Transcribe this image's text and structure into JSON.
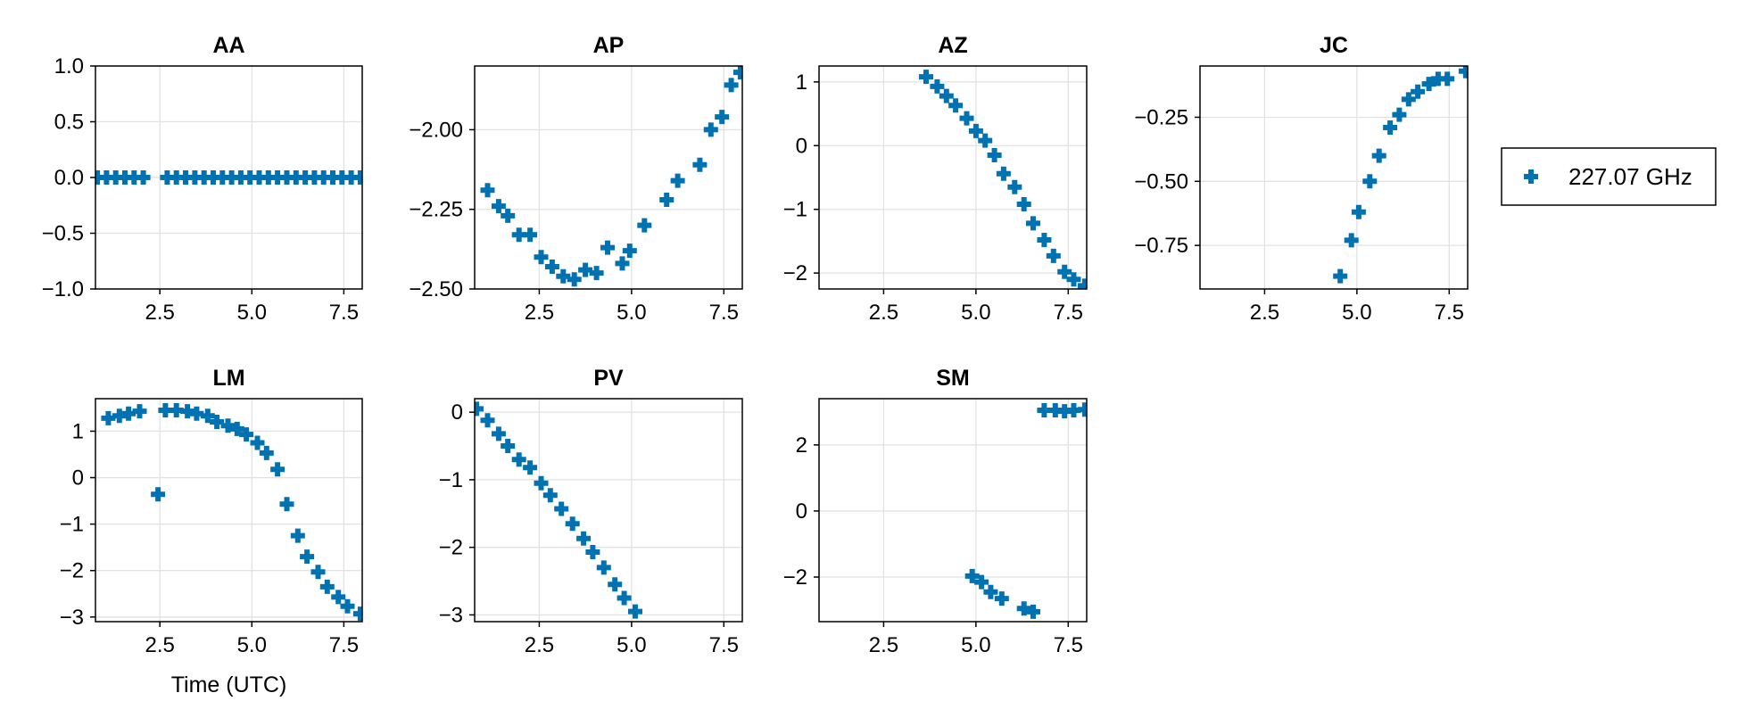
{
  "figure": {
    "legend": {
      "label": "227.07 GHz",
      "marker": "plus-marker",
      "color": "#0072b2",
      "placement": "right"
    },
    "xlabel": "Time (UTC)"
  },
  "chart_data": [
    {
      "type": "scatter",
      "title": "AA",
      "xlim": [
        0.75,
        8.0
      ],
      "ylim": [
        -1.0,
        1.0
      ],
      "xticks": [
        2.5,
        5.0,
        7.5
      ],
      "xtick_labels": [
        "2.5",
        "5.0",
        "7.5"
      ],
      "yticks": [
        -1.0,
        -0.5,
        0.0,
        0.5,
        1.0
      ],
      "ytick_labels": [
        "−1.0",
        "−0.5",
        "0.0",
        "0.5",
        "1.0"
      ],
      "xlabel": "",
      "grid": true,
      "series": [
        {
          "name": "227.07 GHz",
          "color": "#0072b2",
          "points": [
            [
              0.8,
              0
            ],
            [
              1.05,
              0
            ],
            [
              1.3,
              0
            ],
            [
              1.55,
              0
            ],
            [
              1.8,
              0
            ],
            [
              2.05,
              0
            ],
            [
              2.7,
              0
            ],
            [
              2.95,
              0
            ],
            [
              3.2,
              0
            ],
            [
              3.45,
              0
            ],
            [
              3.7,
              0
            ],
            [
              3.95,
              0
            ],
            [
              4.2,
              0
            ],
            [
              4.45,
              0
            ],
            [
              4.7,
              0
            ],
            [
              4.95,
              0
            ],
            [
              5.2,
              0
            ],
            [
              5.45,
              0
            ],
            [
              5.7,
              0
            ],
            [
              5.95,
              0
            ],
            [
              6.2,
              0
            ],
            [
              6.45,
              0
            ],
            [
              6.7,
              0
            ],
            [
              6.95,
              0
            ],
            [
              7.2,
              0
            ],
            [
              7.45,
              0
            ],
            [
              7.7,
              0
            ],
            [
              7.95,
              0
            ]
          ]
        }
      ]
    },
    {
      "type": "scatter",
      "title": "AP",
      "xlim": [
        0.75,
        8.0
      ],
      "ylim": [
        -2.5,
        -1.8
      ],
      "xticks": [
        2.5,
        5.0,
        7.5
      ],
      "xtick_labels": [
        "2.5",
        "5.0",
        "7.5"
      ],
      "yticks": [
        -2.5,
        -2.25,
        -2.0
      ],
      "ytick_labels": [
        "−2.50",
        "−2.25",
        "−2.00"
      ],
      "xlabel": "",
      "grid": true,
      "series": [
        {
          "name": "227.07 GHz",
          "color": "#0072b2",
          "points": [
            [
              1.1,
              -2.19
            ],
            [
              1.4,
              -2.24
            ],
            [
              1.65,
              -2.27
            ],
            [
              1.95,
              -2.33
            ],
            [
              2.25,
              -2.33
            ],
            [
              2.55,
              -2.4
            ],
            [
              2.85,
              -2.43
            ],
            [
              3.15,
              -2.46
            ],
            [
              3.45,
              -2.47
            ],
            [
              3.75,
              -2.44
            ],
            [
              4.05,
              -2.45
            ],
            [
              4.35,
              -2.37
            ],
            [
              4.75,
              -2.42
            ],
            [
              4.95,
              -2.38
            ],
            [
              5.35,
              -2.3
            ],
            [
              5.95,
              -2.22
            ],
            [
              6.25,
              -2.16
            ],
            [
              6.85,
              -2.11
            ],
            [
              7.15,
              -2.0
            ],
            [
              7.45,
              -1.96
            ],
            [
              7.7,
              -1.86
            ],
            [
              7.95,
              -1.82
            ]
          ]
        }
      ]
    },
    {
      "type": "scatter",
      "title": "AZ",
      "xlim": [
        0.75,
        8.0
      ],
      "ylim": [
        -2.25,
        1.25
      ],
      "xticks": [
        2.5,
        5.0,
        7.5
      ],
      "xtick_labels": [
        "2.5",
        "5.0",
        "7.5"
      ],
      "yticks": [
        -2,
        -1,
        0,
        1
      ],
      "ytick_labels": [
        "−2",
        "−1",
        "0",
        "1"
      ],
      "xlabel": "",
      "grid": true,
      "series": [
        {
          "name": "227.07 GHz",
          "color": "#0072b2",
          "points": [
            [
              3.65,
              1.08
            ],
            [
              3.95,
              0.93
            ],
            [
              4.2,
              0.78
            ],
            [
              4.45,
              0.63
            ],
            [
              4.75,
              0.43
            ],
            [
              5.0,
              0.23
            ],
            [
              5.25,
              0.08
            ],
            [
              5.5,
              -0.15
            ],
            [
              5.75,
              -0.44
            ],
            [
              6.05,
              -0.65
            ],
            [
              6.3,
              -0.92
            ],
            [
              6.55,
              -1.22
            ],
            [
              6.85,
              -1.48
            ],
            [
              7.1,
              -1.73
            ],
            [
              7.4,
              -1.98
            ],
            [
              7.65,
              -2.1
            ],
            [
              7.95,
              -2.2
            ]
          ]
        }
      ]
    },
    {
      "type": "scatter",
      "title": "JC",
      "xlim": [
        0.75,
        8.0
      ],
      "ylim": [
        -0.92,
        -0.05
      ],
      "xticks": [
        2.5,
        5.0,
        7.5
      ],
      "xtick_labels": [
        "2.5",
        "5.0",
        "7.5"
      ],
      "yticks": [
        -0.75,
        -0.5,
        -0.25
      ],
      "ytick_labels": [
        "−0.75",
        "−0.50",
        "−0.25"
      ],
      "xlabel": "",
      "grid": true,
      "series": [
        {
          "name": "227.07 GHz",
          "color": "#0072b2",
          "points": [
            [
              4.55,
              -0.87
            ],
            [
              4.85,
              -0.73
            ],
            [
              5.05,
              -0.62
            ],
            [
              5.35,
              -0.5
            ],
            [
              5.6,
              -0.4
            ],
            [
              5.9,
              -0.29
            ],
            [
              6.15,
              -0.24
            ],
            [
              6.4,
              -0.18
            ],
            [
              6.65,
              -0.15
            ],
            [
              6.95,
              -0.12
            ],
            [
              7.2,
              -0.1
            ],
            [
              7.45,
              -0.1
            ],
            [
              7.95,
              -0.07
            ]
          ]
        }
      ]
    },
    {
      "type": "scatter",
      "title": "LM",
      "xlim": [
        0.75,
        8.0
      ],
      "ylim": [
        -3.1,
        1.7
      ],
      "xticks": [
        2.5,
        5.0,
        7.5
      ],
      "xtick_labels": [
        "2.5",
        "5.0",
        "7.5"
      ],
      "yticks": [
        -3,
        -2,
        -1,
        0,
        1
      ],
      "ytick_labels": [
        "−3",
        "−2",
        "−1",
        "0",
        "1"
      ],
      "xlabel": "Time (UTC)",
      "grid": true,
      "series": [
        {
          "name": "227.07 GHz",
          "color": "#0072b2",
          "points": [
            [
              1.1,
              1.28
            ],
            [
              1.4,
              1.33
            ],
            [
              1.65,
              1.38
            ],
            [
              1.95,
              1.43
            ],
            [
              2.45,
              -0.36
            ],
            [
              2.65,
              1.45
            ],
            [
              2.95,
              1.45
            ],
            [
              3.25,
              1.43
            ],
            [
              3.5,
              1.38
            ],
            [
              3.8,
              1.33
            ],
            [
              4.05,
              1.2
            ],
            [
              4.35,
              1.12
            ],
            [
              4.6,
              1.05
            ],
            [
              4.85,
              0.93
            ],
            [
              5.15,
              0.75
            ],
            [
              5.4,
              0.53
            ],
            [
              5.7,
              0.18
            ],
            [
              5.95,
              -0.57
            ],
            [
              6.25,
              -1.25
            ],
            [
              6.5,
              -1.7
            ],
            [
              6.8,
              -2.03
            ],
            [
              7.05,
              -2.35
            ],
            [
              7.35,
              -2.57
            ],
            [
              7.6,
              -2.77
            ],
            [
              7.95,
              -2.93
            ]
          ]
        }
      ]
    },
    {
      "type": "scatter",
      "title": "PV",
      "xlim": [
        0.75,
        8.0
      ],
      "ylim": [
        -3.1,
        0.2
      ],
      "xticks": [
        2.5,
        5.0,
        7.5
      ],
      "xtick_labels": [
        "2.5",
        "5.0",
        "7.5"
      ],
      "yticks": [
        -3,
        -2,
        -1,
        0
      ],
      "ytick_labels": [
        "−3",
        "−2",
        "−1",
        "0"
      ],
      "xlabel": "",
      "grid": true,
      "series": [
        {
          "name": "227.07 GHz",
          "color": "#0072b2",
          "points": [
            [
              0.8,
              0.05
            ],
            [
              1.1,
              -0.12
            ],
            [
              1.4,
              -0.32
            ],
            [
              1.65,
              -0.5
            ],
            [
              1.95,
              -0.7
            ],
            [
              2.25,
              -0.82
            ],
            [
              2.55,
              -1.05
            ],
            [
              2.8,
              -1.23
            ],
            [
              3.1,
              -1.43
            ],
            [
              3.4,
              -1.65
            ],
            [
              3.7,
              -1.87
            ],
            [
              3.95,
              -2.07
            ],
            [
              4.25,
              -2.3
            ],
            [
              4.55,
              -2.55
            ],
            [
              4.8,
              -2.75
            ],
            [
              5.1,
              -2.95
            ]
          ]
        }
      ]
    },
    {
      "type": "scatter",
      "title": "SM",
      "xlim": [
        0.75,
        8.0
      ],
      "ylim": [
        -3.35,
        3.4
      ],
      "xticks": [
        2.5,
        5.0,
        7.5
      ],
      "xtick_labels": [
        "2.5",
        "5.0",
        "7.5"
      ],
      "yticks": [
        -2,
        0,
        2
      ],
      "ytick_labels": [
        "−2",
        "0",
        "2"
      ],
      "xlabel": "",
      "grid": true,
      "series": [
        {
          "name": "227.07 GHz",
          "color": "#0072b2",
          "points": [
            [
              4.9,
              -1.97
            ],
            [
              5.15,
              -2.15
            ],
            [
              5.4,
              -2.45
            ],
            [
              5.7,
              -2.65
            ],
            [
              6.3,
              -2.95
            ],
            [
              6.55,
              -3.05
            ],
            [
              6.85,
              3.05
            ],
            [
              7.15,
              3.05
            ],
            [
              7.4,
              3.02
            ],
            [
              7.65,
              3.05
            ],
            [
              7.95,
              3.07
            ]
          ]
        }
      ]
    }
  ]
}
